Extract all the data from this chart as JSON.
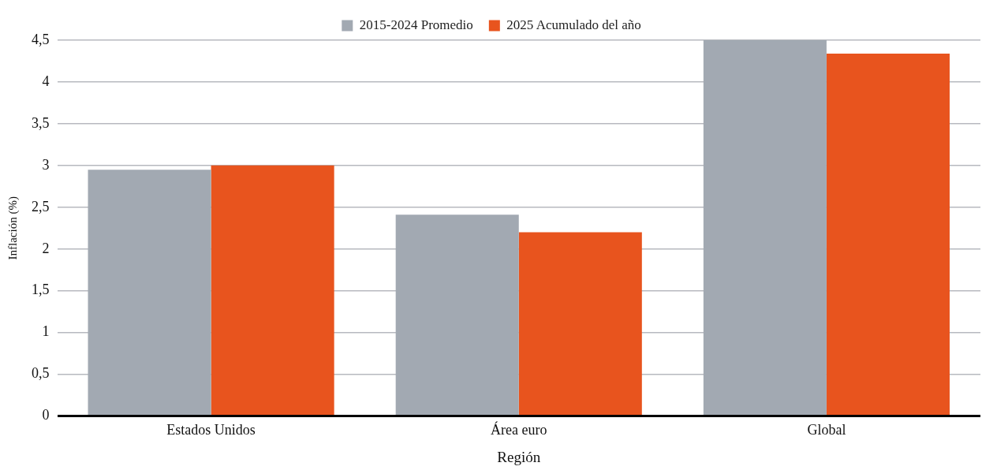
{
  "chart_data": {
    "type": "bar",
    "xlabel": "Región",
    "ylabel": "Inflación (%)",
    "categories": [
      "Estados Unidos",
      "Área euro",
      "Global"
    ],
    "series": [
      {
        "name": "2015-2024 Promedio",
        "color": "#a2a9b2",
        "values": [
          2.95,
          2.41,
          4.5
        ]
      },
      {
        "name": "2025 Acumulado del año",
        "color": "#e8541e",
        "values": [
          3.0,
          2.2,
          4.34
        ]
      }
    ],
    "ylim": [
      0,
      4.5
    ],
    "yticks": [
      0,
      {
        "value": 0.5,
        "label": "0,5"
      },
      1,
      {
        "value": 1.5,
        "label": "1,5"
      },
      2,
      {
        "value": 2.5,
        "label": "2,5"
      },
      3,
      {
        "value": 3.5,
        "label": "3,5"
      },
      4,
      {
        "value": 4.5,
        "label": "4,5"
      }
    ],
    "grid": "y",
    "legend": "top"
  }
}
